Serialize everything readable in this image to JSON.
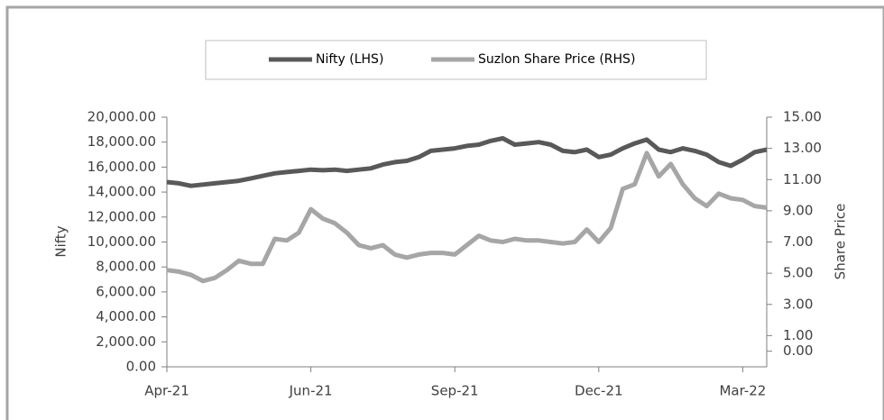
{
  "chart_data": {
    "type": "line",
    "categories": [
      "Apr-21",
      null,
      null,
      null,
      null,
      null,
      null,
      null,
      null,
      null,
      null,
      null,
      "Jun-21",
      null,
      null,
      null,
      null,
      null,
      null,
      null,
      null,
      null,
      null,
      null,
      "Sep-21",
      null,
      null,
      null,
      null,
      null,
      null,
      null,
      null,
      null,
      null,
      null,
      "Dec-21",
      null,
      null,
      null,
      null,
      null,
      null,
      null,
      null,
      null,
      null,
      null,
      "Mar-22",
      null,
      null
    ],
    "series": [
      {
        "name": "Nifty  (LHS)",
        "color": "#595959",
        "axis": "y",
        "values": [
          14800,
          14700,
          14500,
          14600,
          14700,
          14800,
          14900,
          15100,
          15300,
          15500,
          15600,
          15700,
          15800,
          15750,
          15800,
          15700,
          15800,
          15900,
          16200,
          16400,
          16500,
          16800,
          17300,
          17400,
          17500,
          17700,
          17800,
          18100,
          18300,
          17800,
          17900,
          18000,
          17800,
          17300,
          17200,
          17400,
          16800,
          17000,
          17500,
          17900,
          18200,
          17400,
          17200,
          17500,
          17300,
          17000,
          16400,
          16100,
          16600,
          17200,
          17400
        ]
      },
      {
        "name": "Suzlon Share Price (RHS)",
        "color": "#a6a6a6",
        "axis": "y2",
        "values": [
          5.2,
          5.1,
          4.9,
          4.5,
          4.7,
          5.2,
          5.8,
          5.6,
          5.6,
          7.2,
          7.1,
          7.6,
          9.1,
          8.5,
          8.2,
          7.6,
          6.8,
          6.6,
          6.8,
          6.2,
          6.0,
          6.2,
          6.3,
          6.3,
          6.2,
          6.8,
          7.4,
          7.1,
          7.0,
          7.2,
          7.1,
          7.1,
          7.0,
          6.9,
          7.0,
          7.8,
          7.0,
          7.9,
          10.4,
          10.7,
          12.7,
          11.2,
          12.0,
          10.7,
          9.8,
          9.3,
          10.1,
          9.8,
          9.7,
          9.3,
          9.2
        ]
      }
    ],
    "ylabel": "Nifty",
    "y2label": "Share Price",
    "ylim": [
      0,
      20000
    ],
    "yticks": [
      {
        "value": 0,
        "label": "0.00"
      },
      {
        "value": 2000,
        "label": "2,000.00"
      },
      {
        "value": 4000,
        "label": "4,000.00"
      },
      {
        "value": 6000,
        "label": "6,000.00"
      },
      {
        "value": 8000,
        "label": "8,000.00"
      },
      {
        "value": 10000,
        "label": "10,000.00"
      },
      {
        "value": 12000,
        "label": "12,000.00"
      },
      {
        "value": 14000,
        "label": "14,000.00"
      },
      {
        "value": 16000,
        "label": "16,000.00"
      },
      {
        "value": 18000,
        "label": "18,000.00"
      },
      {
        "value": 20000,
        "label": "20,000.00"
      }
    ],
    "y2lim": [
      -1,
      15
    ],
    "y2ticks": [
      {
        "value": 0,
        "label": "0.00"
      },
      {
        "value": 1,
        "label": "1.00"
      },
      {
        "value": 3,
        "label": "3.00"
      },
      {
        "value": 5,
        "label": "5.00"
      },
      {
        "value": 7,
        "label": "7.00"
      },
      {
        "value": 9,
        "label": "9.00"
      },
      {
        "value": 11,
        "label": "11.00"
      },
      {
        "value": 13,
        "label": "13.00"
      },
      {
        "value": 15,
        "label": "15.00"
      }
    ],
    "legend": "top"
  }
}
